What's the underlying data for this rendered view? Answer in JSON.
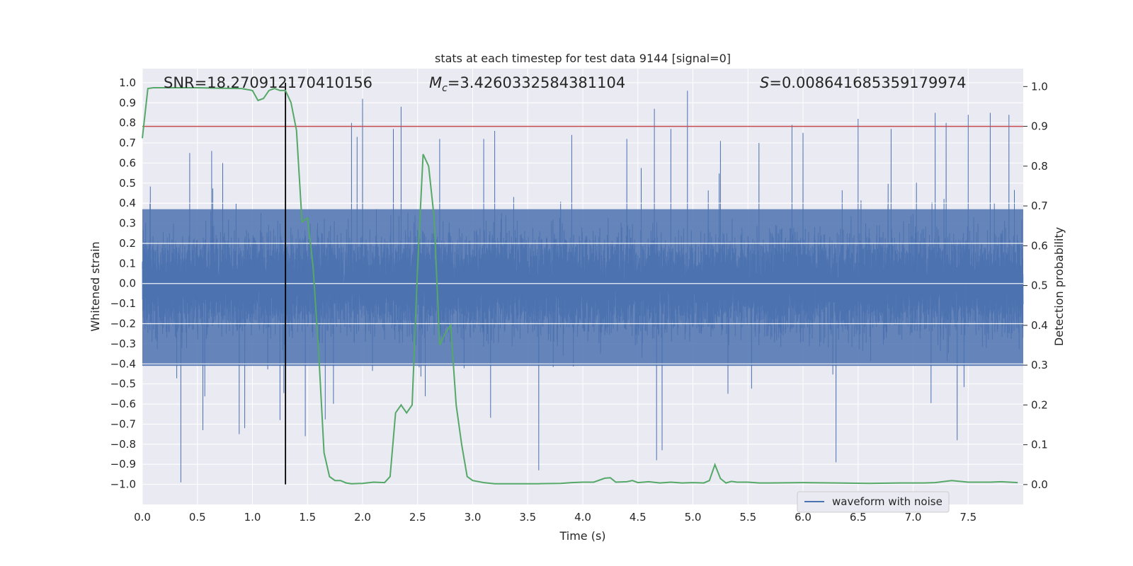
{
  "chart_data": {
    "type": "line",
    "title": "stats at each timestep for test data 9144 [signal=0]",
    "xlabel": "Time (s)",
    "ylabel": "Whitened strain",
    "ylabel_right": "Detection probability",
    "xlim": [
      0,
      8
    ],
    "ylim": [
      -1.1,
      1.07
    ],
    "ylim_right": [
      -0.05,
      1.045
    ],
    "x_ticks": [
      "0.0",
      "0.5",
      "1.0",
      "1.5",
      "2.0",
      "2.5",
      "3.0",
      "3.5",
      "4.0",
      "4.5",
      "5.0",
      "5.5",
      "6.0",
      "6.5",
      "7.0",
      "7.5"
    ],
    "y_ticks": [
      "1.0",
      "0.9",
      "0.8",
      "0.7",
      "0.6",
      "0.5",
      "0.4",
      "0.3",
      "0.2",
      "0.1",
      "0.0",
      "-0.1",
      "-0.2",
      "-0.3",
      "-0.4",
      "-0.5",
      "-0.6",
      "-0.7",
      "-0.8",
      "-0.9",
      "-1.0"
    ],
    "y_ticks_right": [
      "1.0",
      "0.9",
      "0.8",
      "0.7",
      "0.6",
      "0.5",
      "0.4",
      "0.3",
      "0.2",
      "0.1",
      "0.0"
    ],
    "annotations": {
      "snr": "SNR=18.270912170410156",
      "mc_symbol": "M",
      "mc_sub": "c",
      "mc_value": "=3.4260332584381104",
      "s_symbol": "S",
      "s_value": "=0.008641685359179974"
    },
    "legend": {
      "label": "waveform with noise",
      "position": "lower-right"
    },
    "threshold": {
      "axis": "right",
      "value": 0.9,
      "color": "#c44e52"
    },
    "marker": {
      "x": 1.3,
      "y_range": [
        -1.0,
        1.0
      ],
      "color": "#000000"
    },
    "series": [
      {
        "name": "waveform with noise",
        "axis": "left",
        "kind": "noise",
        "sample_rate": 2048,
        "duration": 8,
        "band_low": -0.41,
        "band_high": 0.37,
        "color": "#4c72b0",
        "peaks": [
          [
            0.35,
            -0.99
          ],
          [
            0.43,
            0.65
          ],
          [
            0.55,
            -0.73
          ],
          [
            0.63,
            0.66
          ],
          [
            0.73,
            0.6
          ],
          [
            0.88,
            -0.75
          ],
          [
            0.93,
            -0.72
          ],
          [
            1.25,
            -0.68
          ],
          [
            1.48,
            -0.76
          ],
          [
            1.9,
            0.8
          ],
          [
            1.95,
            0.73
          ],
          [
            2.0,
            0.92
          ],
          [
            2.35,
            0.88
          ],
          [
            2.28,
            0.77
          ],
          [
            2.7,
            0.72
          ],
          [
            3.1,
            0.72
          ],
          [
            3.2,
            0.76
          ],
          [
            3.6,
            -0.93
          ],
          [
            3.9,
            0.74
          ],
          [
            4.4,
            0.72
          ],
          [
            4.65,
            0.87
          ],
          [
            4.8,
            0.77
          ],
          [
            4.95,
            0.96
          ],
          [
            4.67,
            -0.88
          ],
          [
            4.72,
            -0.83
          ],
          [
            5.25,
            0.71
          ],
          [
            5.6,
            0.7
          ],
          [
            5.9,
            0.79
          ],
          [
            6.0,
            0.75
          ],
          [
            6.3,
            -0.89
          ],
          [
            6.5,
            0.82
          ],
          [
            6.8,
            0.77
          ],
          [
            7.2,
            0.85
          ],
          [
            7.3,
            0.8
          ],
          [
            7.5,
            0.84
          ],
          [
            7.7,
            0.85
          ],
          [
            7.87,
            0.84
          ],
          [
            7.4,
            -0.78
          ]
        ]
      },
      {
        "name": "Detection probability",
        "axis": "right",
        "color": "#55a868",
        "x": [
          0.0,
          0.05,
          0.1,
          0.2,
          0.3,
          0.5,
          0.7,
          0.9,
          1.0,
          1.05,
          1.1,
          1.15,
          1.2,
          1.25,
          1.3,
          1.35,
          1.4,
          1.45,
          1.5,
          1.55,
          1.6,
          1.65,
          1.7,
          1.75,
          1.8,
          1.85,
          1.9,
          2.0,
          2.1,
          2.2,
          2.25,
          2.3,
          2.35,
          2.4,
          2.45,
          2.5,
          2.55,
          2.6,
          2.65,
          2.7,
          2.75,
          2.8,
          2.85,
          2.9,
          2.95,
          3.0,
          3.1,
          3.2,
          3.4,
          3.6,
          3.8,
          3.9,
          4.0,
          4.1,
          4.2,
          4.25,
          4.3,
          4.4,
          4.45,
          4.5,
          4.6,
          4.7,
          4.8,
          4.9,
          5.0,
          5.1,
          5.15,
          5.2,
          5.25,
          5.3,
          5.35,
          5.4,
          5.5,
          5.6,
          5.7,
          6.0,
          6.3,
          6.6,
          6.9,
          7.1,
          7.2,
          7.35,
          7.5,
          7.7,
          7.8,
          7.95
        ],
        "y": [
          0.87,
          0.995,
          0.997,
          0.997,
          0.997,
          0.997,
          0.996,
          0.995,
          0.99,
          0.965,
          0.97,
          0.99,
          0.995,
          0.99,
          0.99,
          0.96,
          0.89,
          0.66,
          0.67,
          0.55,
          0.34,
          0.08,
          0.02,
          0.01,
          0.01,
          0.004,
          0.002,
          0.003,
          0.006,
          0.005,
          0.02,
          0.18,
          0.2,
          0.18,
          0.2,
          0.55,
          0.83,
          0.8,
          0.67,
          0.35,
          0.38,
          0.4,
          0.2,
          0.1,
          0.02,
          0.01,
          0.005,
          0.002,
          0.002,
          0.002,
          0.003,
          0.005,
          0.006,
          0.006,
          0.016,
          0.017,
          0.006,
          0.007,
          0.01,
          0.005,
          0.007,
          0.004,
          0.006,
          0.004,
          0.005,
          0.004,
          0.01,
          0.05,
          0.015,
          0.004,
          0.008,
          0.006,
          0.006,
          0.004,
          0.004,
          0.005,
          0.004,
          0.003,
          0.004,
          0.004,
          0.005,
          0.01,
          0.006,
          0.006,
          0.007,
          0.005
        ]
      }
    ]
  }
}
